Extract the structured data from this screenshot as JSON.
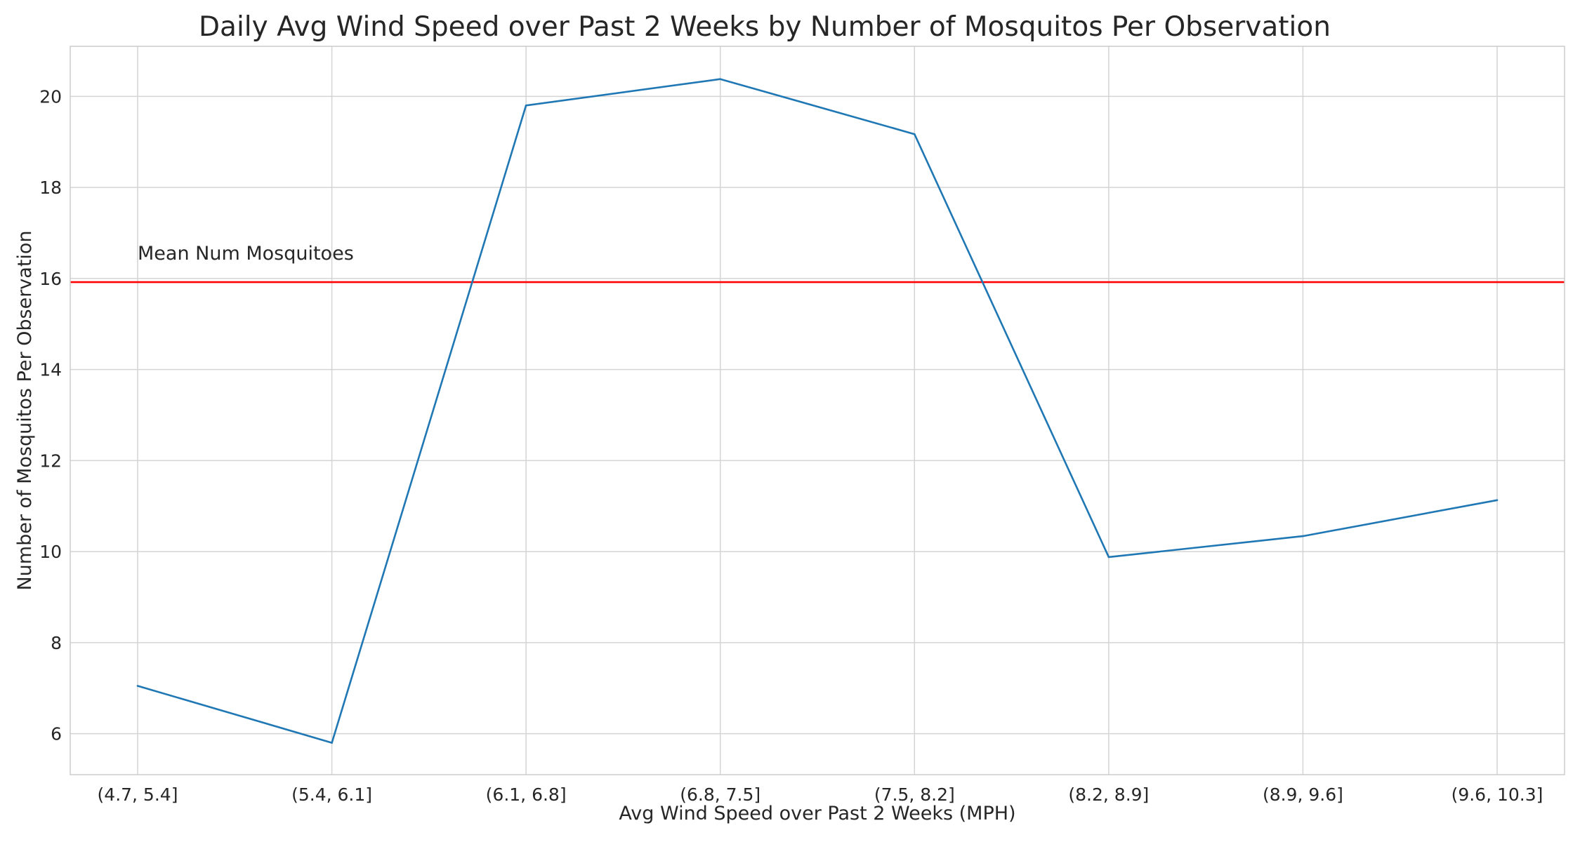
{
  "chart_data": {
    "type": "line",
    "title": "Daily Avg Wind Speed over Past 2 Weeks by Number of Mosquitos Per Observation",
    "xlabel": "Avg Wind Speed over Past 2 Weeks (MPH)",
    "ylabel": "Number of Mosquitos Per Observation",
    "categories": [
      "(4.7, 5.4]",
      "(5.4, 6.1]",
      "(6.1, 6.8]",
      "(6.8, 7.5]",
      "(7.5, 8.2]",
      "(8.2, 8.9]",
      "(8.9, 9.6]",
      "(9.6, 10.3]"
    ],
    "series": [
      {
        "values": [
          7.05,
          5.8,
          19.8,
          20.38,
          19.17,
          9.88,
          10.34,
          11.13
        ],
        "color": "#1f77b4"
      }
    ],
    "reference_line": {
      "value": 15.92,
      "label": "Mean Num Mosquitoes",
      "color": "#ff0000"
    },
    "ylim": [
      5.1,
      21.1
    ],
    "yticks": [
      6,
      8,
      10,
      12,
      14,
      16,
      18,
      20
    ],
    "grid": true,
    "legend": "none"
  }
}
